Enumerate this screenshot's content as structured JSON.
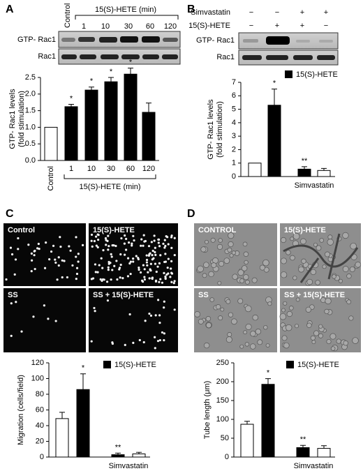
{
  "panel_labels": [
    "A",
    "B",
    "C",
    "D"
  ],
  "blot_a": {
    "header_control": "Control",
    "header_group": "15(S)-HETE (min)",
    "header_times": [
      "1",
      "10",
      "30",
      "60",
      "120"
    ],
    "rows": [
      "GTP- Rac1",
      "Rac1"
    ]
  },
  "blot_b": {
    "treatments": [
      {
        "name": "Simvastatin",
        "signs": [
          "−",
          "−",
          "+",
          "+"
        ]
      },
      {
        "name": "15(S)-HETE",
        "signs": [
          "−",
          "+",
          "+",
          "−"
        ]
      }
    ],
    "rows": [
      "GTP- Rac1",
      "Rac1"
    ]
  },
  "micrographs_c": [
    "Control",
    "15(S)-HETE",
    "SS",
    "SS + 15(S)-HETE"
  ],
  "micrographs_d": [
    "CONTROL",
    "15(S)-HETE",
    "SS",
    "SS + 15(S)-HETE"
  ],
  "chart_data": [
    {
      "type": "bar",
      "y_label": [
        "GTP- Rac1 levels",
        "(fold stimulation)"
      ],
      "categories": [
        "Control",
        "1",
        "10",
        "30",
        "60",
        "120"
      ],
      "group_label": "15(S)-HETE (min)",
      "values": [
        1.0,
        1.62,
        2.12,
        2.37,
        2.6,
        1.45
      ],
      "errors": [
        0,
        0.07,
        0.09,
        0.13,
        0.18,
        0.28
      ],
      "significance": [
        null,
        "*",
        "*",
        "*",
        "*",
        null
      ],
      "bar_colors": [
        "#ffffff",
        "#000000",
        "#000000",
        "#000000",
        "#000000",
        "#000000"
      ],
      "ylim": [
        0,
        2.5
      ],
      "yticks": [
        {
          "value": 0,
          "label": "0.0"
        },
        {
          "value": 0.5,
          "label": "0.5"
        },
        {
          "value": 1,
          "label": "1.0"
        },
        {
          "value": 1.5,
          "label": "1.5"
        },
        {
          "value": 2,
          "label": "2.0"
        },
        {
          "value": 2.5,
          "label": "2.5"
        }
      ]
    },
    {
      "type": "bar",
      "y_label": [
        "GTP- Rac1 levels",
        "(fold stimulation)"
      ],
      "categories": [
        null,
        null,
        null,
        null
      ],
      "group_label": "Simvastatin",
      "legend": {
        "name": "15(S)-HETE",
        "color": "#000000"
      },
      "values": [
        1.0,
        5.3,
        0.55,
        0.45
      ],
      "errors": [
        0,
        1.2,
        0.18,
        0.15
      ],
      "significance": [
        null,
        "*",
        "**",
        null
      ],
      "bar_colors": [
        "#ffffff",
        "#000000",
        "#000000",
        "#ffffff"
      ],
      "ylim": [
        0,
        7
      ],
      "yticks": [
        0,
        1,
        2,
        3,
        4,
        5,
        6,
        7
      ]
    },
    {
      "type": "bar",
      "y_label": [
        "Migration (cells/field)"
      ],
      "categories": [
        null,
        null,
        null,
        null
      ],
      "group_label": "Simvastatin",
      "legend": {
        "name": "15(S)-HETE",
        "color": "#000000"
      },
      "values": [
        49,
        86,
        3,
        4
      ],
      "errors": [
        8,
        20,
        2,
        2
      ],
      "significance": [
        null,
        "*",
        "**",
        null
      ],
      "bar_colors": [
        "#ffffff",
        "#000000",
        "#000000",
        "#ffffff"
      ],
      "ylim": [
        0,
        120
      ],
      "yticks": [
        0,
        20,
        40,
        60,
        80,
        100,
        120
      ]
    },
    {
      "type": "bar",
      "y_label": [
        "Tube length (μm)"
      ],
      "categories": [
        null,
        null,
        null,
        null
      ],
      "group_label": "Simvastatin",
      "legend": {
        "name": "15(S)-HETE",
        "color": "#000000"
      },
      "values": [
        87,
        193,
        25,
        23
      ],
      "errors": [
        8,
        15,
        6,
        7
      ],
      "significance": [
        null,
        "*",
        "**",
        null
      ],
      "bar_colors": [
        "#ffffff",
        "#000000",
        "#000000",
        "#ffffff"
      ],
      "ylim": [
        0,
        250
      ],
      "yticks": [
        0,
        50,
        100,
        150,
        200,
        250
      ]
    }
  ]
}
